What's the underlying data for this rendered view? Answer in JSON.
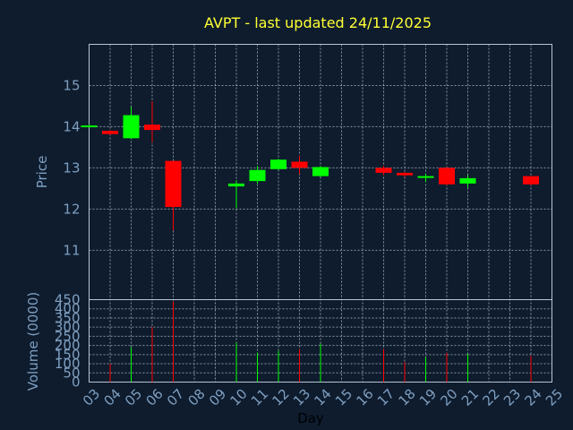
{
  "chart_data": {
    "type": "candlestick",
    "title": "AVPT - last updated 24/11/2025",
    "ylabel": "Price",
    "volume_ylabel": "Volume (0000)",
    "xlabel": "Day",
    "x_ticks": [
      "03",
      "04",
      "05",
      "06",
      "07",
      "08",
      "09",
      "10",
      "11",
      "12",
      "13",
      "14",
      "15",
      "16",
      "17",
      "18",
      "19",
      "20",
      "21",
      "22",
      "23",
      "24",
      "25"
    ],
    "price_ylim": [
      9.8,
      16.0
    ],
    "price_ticks": [
      11,
      12,
      13,
      14,
      15
    ],
    "volume_ylim": [
      0,
      450
    ],
    "volume_ticks": [
      0,
      50,
      100,
      150,
      200,
      250,
      300,
      350,
      400,
      450
    ],
    "grid": true,
    "colors": {
      "up": "#00ff00",
      "down": "#ff0000",
      "background": "#0e1c2e",
      "title": "#ffff33",
      "axis_text": "#7f9fc0"
    },
    "candles": [
      {
        "day": "03",
        "open": 14.0,
        "high": 14.05,
        "low": 13.99,
        "close": 14.03,
        "volume": 0
      },
      {
        "day": "04",
        "open": 13.9,
        "high": 13.92,
        "low": 13.8,
        "close": 13.82,
        "volume": 100
      },
      {
        "day": "05",
        "open": 13.72,
        "high": 14.48,
        "low": 13.7,
        "close": 14.28,
        "volume": 190
      },
      {
        "day": "06",
        "open": 14.05,
        "high": 14.62,
        "low": 13.62,
        "close": 13.92,
        "volume": 300
      },
      {
        "day": "07",
        "open": 13.17,
        "high": 13.17,
        "low": 11.48,
        "close": 12.05,
        "volume": 440
      },
      {
        "day": "10",
        "open": 12.55,
        "high": 12.7,
        "low": 12.02,
        "close": 12.62,
        "volume": 215
      },
      {
        "day": "11",
        "open": 12.68,
        "high": 13.05,
        "low": 12.62,
        "close": 12.95,
        "volume": 160
      },
      {
        "day": "12",
        "open": 12.97,
        "high": 13.22,
        "low": 12.95,
        "close": 13.2,
        "volume": 170
      },
      {
        "day": "13",
        "open": 13.15,
        "high": 13.3,
        "low": 12.85,
        "close": 13.0,
        "volume": 180
      },
      {
        "day": "14",
        "open": 12.8,
        "high": 13.05,
        "low": 12.78,
        "close": 13.02,
        "volume": 210
      },
      {
        "day": "17",
        "open": 13.0,
        "high": 13.05,
        "low": 12.82,
        "close": 12.88,
        "volume": 180
      },
      {
        "day": "18",
        "open": 12.88,
        "high": 12.9,
        "low": 12.78,
        "close": 12.82,
        "volume": 110
      },
      {
        "day": "19",
        "open": 12.77,
        "high": 12.85,
        "low": 12.65,
        "close": 12.8,
        "volume": 135
      },
      {
        "day": "20",
        "open": 13.0,
        "high": 13.02,
        "low": 12.58,
        "close": 12.6,
        "volume": 160
      },
      {
        "day": "21",
        "open": 12.62,
        "high": 12.82,
        "low": 12.52,
        "close": 12.75,
        "volume": 155
      },
      {
        "day": "24",
        "open": 12.8,
        "high": 12.8,
        "low": 12.58,
        "close": 12.6,
        "volume": 145
      }
    ]
  }
}
